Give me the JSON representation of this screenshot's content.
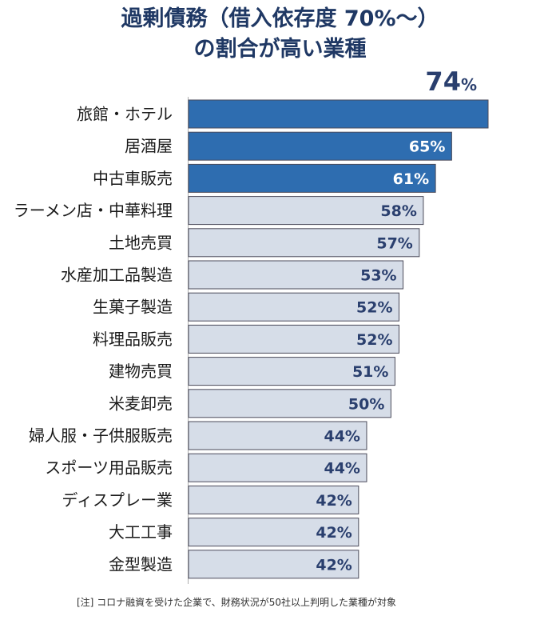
{
  "title_lines": [
    "過剰債務（借入依存度 70%～）",
    "の割合が高い業種"
  ],
  "footnote": "[注]  コロナ融資を受けた企業で、財務状況が50社以上判明した業種が対象",
  "colors": {
    "highlight": "#2e6db0",
    "normal": "#d6dde8",
    "bar_border": "#4a4a5a",
    "label_light": "#ffffff",
    "label_dark": "#2a3f6e",
    "axis": "#b0b0b0"
  },
  "chart_data": {
    "type": "bar",
    "orientation": "horizontal",
    "unit": "%",
    "categories": [
      "旅館・ホテル",
      "居酒屋",
      "中古車販売",
      "ラーメン店・中華料理",
      "土地売買",
      "水産加工品製造",
      "生菓子製造",
      "料理品販売",
      "建物売買",
      "米麦卸売",
      "婦人服・子供服販売",
      "スポーツ用品販売",
      "ディスプレー業",
      "大工工事",
      "金型製造"
    ],
    "values": [
      74,
      65,
      61,
      58,
      57,
      53,
      52,
      52,
      51,
      50,
      44,
      44,
      42,
      42,
      42
    ],
    "highlighted": [
      true,
      true,
      true,
      false,
      false,
      false,
      false,
      false,
      false,
      false,
      false,
      false,
      false,
      false,
      false
    ],
    "xlim": [
      0,
      74
    ]
  }
}
